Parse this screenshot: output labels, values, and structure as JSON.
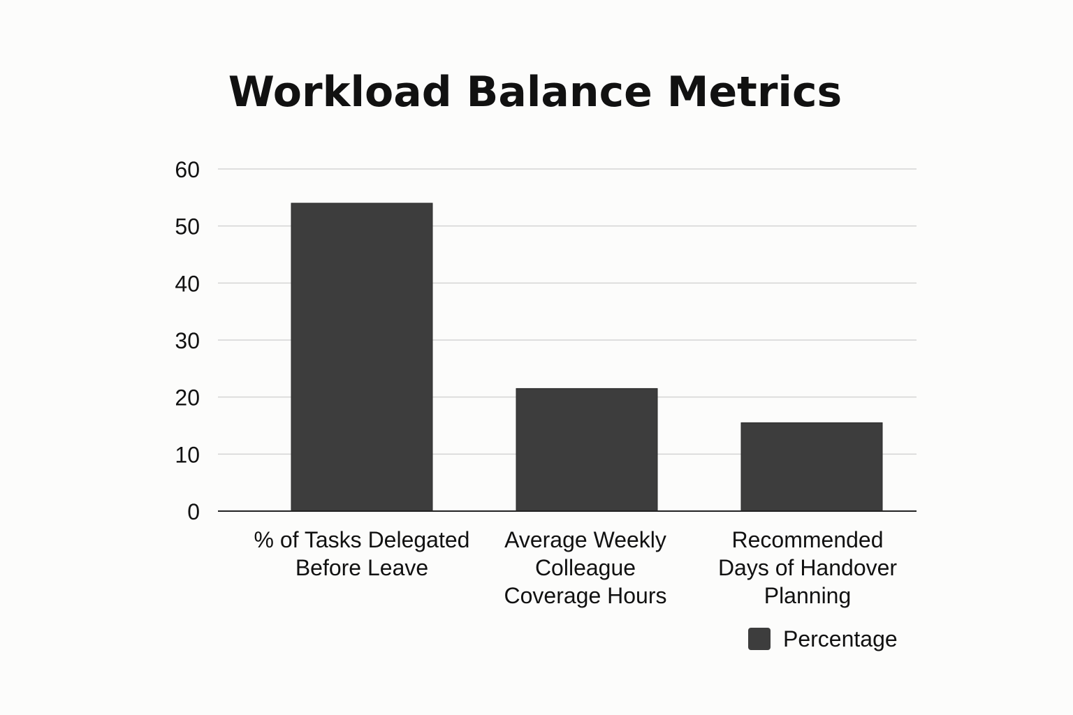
{
  "chart_data": {
    "type": "bar",
    "title": "Workload Balance Metrics",
    "categories": [
      [
        "% of Tasks Delegated",
        "Before Leave"
      ],
      [
        "Average Weekly",
        "Colleague",
        "Coverage Hours"
      ],
      [
        "Recommended",
        "Days of Handover",
        "Planning"
      ]
    ],
    "series": [
      {
        "name": "Percentage",
        "values": [
          54,
          21.5,
          15.5
        ],
        "color": "#3d3d3d"
      }
    ],
    "ylim": [
      0,
      60
    ],
    "yticks": [
      0,
      10,
      20,
      30,
      40,
      50,
      60
    ],
    "grid": true,
    "legend": "bottom-right",
    "colors": {
      "bar": "#3d3d3d",
      "grid": "#d4d4d4",
      "axis": "#222222",
      "text": "#111111",
      "background": "#fcfcfb"
    }
  }
}
